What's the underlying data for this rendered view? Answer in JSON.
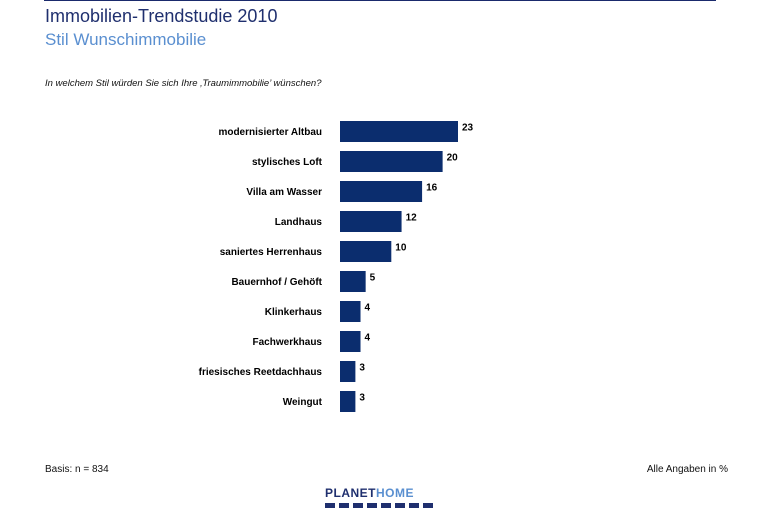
{
  "header": {
    "title": "Immobilien-Trendstudie 2010",
    "subtitle": "Stil Wunschimmobilie"
  },
  "question": "In welchem Stil würden Sie sich Ihre ‚Traumimmobilie’ wünschen?",
  "chart_data": {
    "type": "bar",
    "orientation": "horizontal",
    "categories": [
      "modernisierter Altbau",
      "stylisches Loft",
      "Villa am Wasser",
      "Landhaus",
      "saniertes Herrenhaus",
      "Bauernhof / Gehöft",
      "Klinkerhaus",
      "Fachwerkhaus",
      "friesisches Reetdachhaus",
      "Weingut"
    ],
    "values": [
      23,
      20,
      16,
      12,
      10,
      5,
      4,
      4,
      3,
      3
    ],
    "title": "",
    "xlabel": "",
    "ylabel": "",
    "xlim": [
      0,
      23
    ],
    "grid": false,
    "data_labels": true,
    "bar_color": "#0b2d6e"
  },
  "footer": {
    "basis": "Basis: n = 834",
    "note": "Alle Angaben in %"
  },
  "logo": {
    "part1": "PLANET",
    "part2": "HOME"
  }
}
